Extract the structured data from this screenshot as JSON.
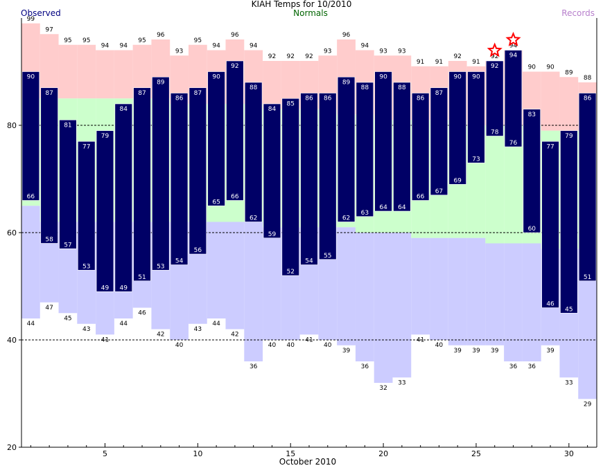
{
  "chart_data": {
    "type": "bar",
    "title": "KIAH Temps for 10/2010",
    "series_labels": {
      "observed": "Observed",
      "normals": "Normals",
      "records": "Records"
    },
    "xlabel": "October 2010",
    "ylabel": "",
    "ylim": [
      20,
      100
    ],
    "xlim": [
      0.5,
      31.5
    ],
    "yticks": [
      20,
      40,
      60,
      80
    ],
    "xticks": [
      5,
      10,
      15,
      20,
      25,
      30
    ],
    "grid_y": [
      40,
      60,
      80
    ],
    "days": [
      1,
      2,
      3,
      4,
      5,
      6,
      7,
      8,
      9,
      10,
      11,
      12,
      13,
      14,
      15,
      16,
      17,
      18,
      19,
      20,
      21,
      22,
      23,
      24,
      25,
      26,
      27,
      28,
      29,
      30,
      31
    ],
    "observed_high": [
      90,
      87,
      81,
      77,
      79,
      84,
      87,
      89,
      86,
      87,
      90,
      92,
      88,
      84,
      85,
      86,
      86,
      89,
      88,
      90,
      88,
      86,
      87,
      90,
      90,
      92,
      94,
      83,
      77,
      79,
      86
    ],
    "observed_low": [
      66,
      58,
      57,
      53,
      49,
      49,
      51,
      53,
      54,
      56,
      65,
      66,
      62,
      59,
      52,
      54,
      55,
      62,
      63,
      64,
      64,
      66,
      67,
      69,
      73,
      78,
      76,
      60,
      46,
      45,
      51
    ],
    "normal_high": [
      85,
      85,
      85,
      85,
      85,
      85,
      85,
      85,
      84,
      84,
      84,
      84,
      84,
      83,
      83,
      83,
      83,
      82,
      82,
      81,
      81,
      81,
      81,
      81,
      80,
      80,
      80,
      80,
      79,
      79,
      79
    ],
    "normal_low": [
      65,
      62,
      62,
      62,
      62,
      62,
      62,
      62,
      62,
      62,
      62,
      62,
      62,
      61,
      61,
      61,
      61,
      61,
      60,
      60,
      60,
      59,
      59,
      59,
      59,
      58,
      58,
      58,
      57,
      57,
      57
    ],
    "record_high": [
      99,
      97,
      95,
      95,
      94,
      94,
      95,
      96,
      93,
      95,
      94,
      96,
      94,
      92,
      92,
      92,
      93,
      96,
      94,
      93,
      93,
      91,
      91,
      92,
      91,
      92,
      94,
      90,
      90,
      89,
      88
    ],
    "record_low": [
      44,
      47,
      45,
      43,
      41,
      44,
      46,
      42,
      40,
      43,
      44,
      42,
      36,
      40,
      40,
      41,
      40,
      39,
      36,
      32,
      33,
      41,
      40,
      39,
      39,
      39,
      36,
      36,
      39,
      33,
      29
    ],
    "record_markers": [
      {
        "day": 26,
        "type": "record_high"
      },
      {
        "day": 27,
        "type": "record_high"
      }
    ],
    "colors": {
      "observed_bar": "#000066",
      "normal_band": "#ccffcc",
      "record_high_band": "#ffcccc",
      "record_low_band": "#ccccff",
      "record_star": "#ff0000",
      "observed_label": "#000080",
      "normals_label": "#006400",
      "records_label": "#b77fcc"
    }
  }
}
